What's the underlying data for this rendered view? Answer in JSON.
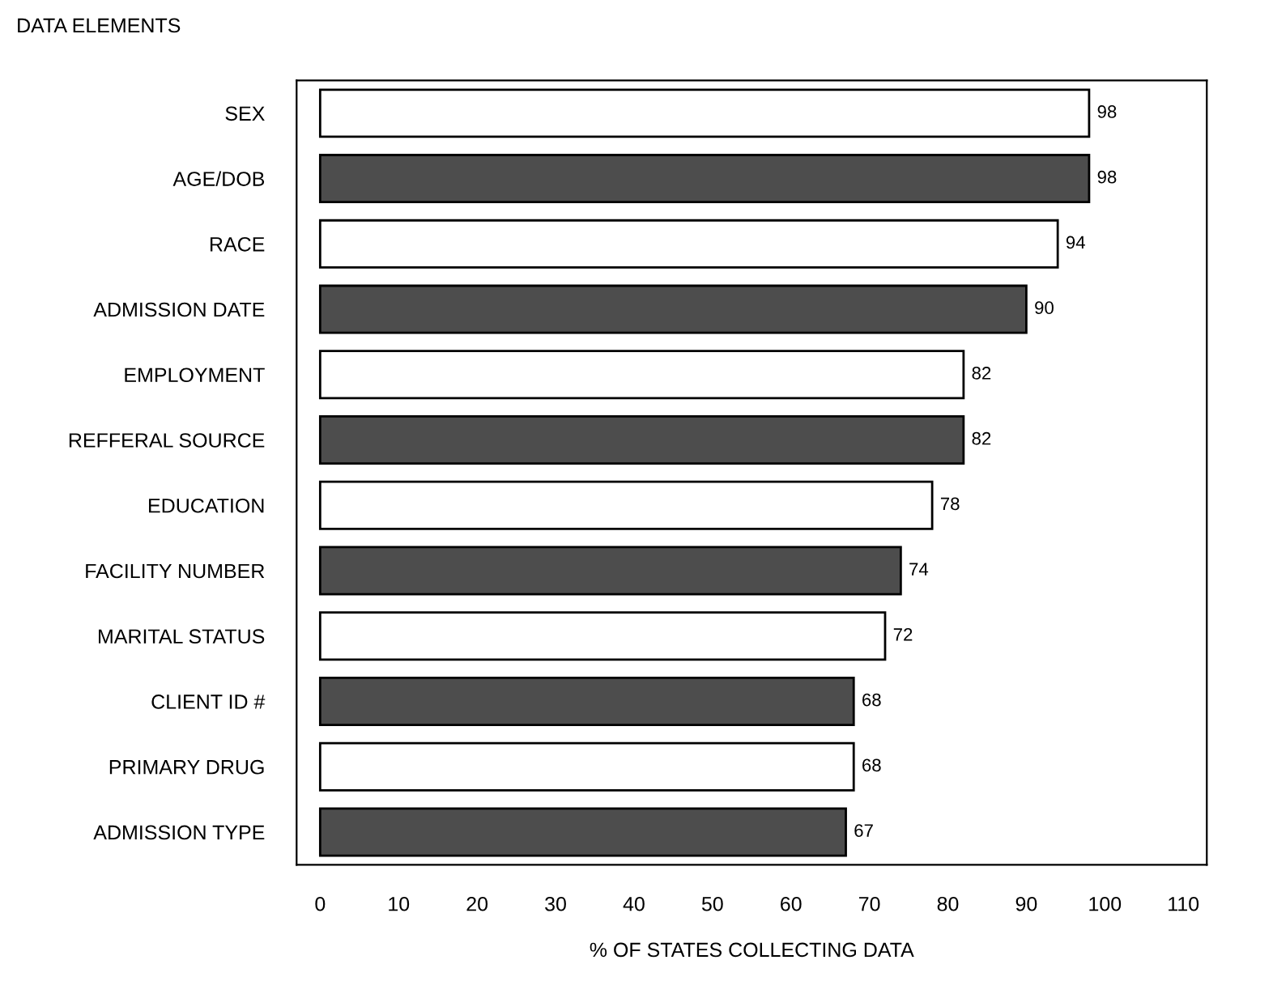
{
  "chart_data": {
    "type": "bar",
    "orientation": "horizontal",
    "ylabel": "DATA ELEMENTS",
    "xlabel": "% OF STATES COLLECTING DATA",
    "categories": [
      "SEX",
      "AGE/DOB",
      "RACE",
      "ADMISSION DATE",
      "EMPLOYMENT",
      "REFFERAL SOURCE",
      "EDUCATION",
      "FACILITY NUMBER",
      "MARITAL STATUS",
      "CLIENT ID #",
      "PRIMARY DRUG",
      "ADMISSION TYPE"
    ],
    "values": [
      98,
      98,
      94,
      90,
      82,
      82,
      78,
      74,
      72,
      68,
      68,
      67
    ],
    "colors": [
      "#ffffff",
      "#4d4d4d",
      "#ffffff",
      "#4d4d4d",
      "#ffffff",
      "#4d4d4d",
      "#ffffff",
      "#4d4d4d",
      "#ffffff",
      "#4d4d4d",
      "#ffffff",
      "#4d4d4d"
    ],
    "xlim": [
      -3,
      113
    ],
    "xticks": [
      0,
      10,
      20,
      30,
      40,
      50,
      60,
      70,
      80,
      90,
      100,
      110
    ],
    "data_labels": true,
    "grid": false,
    "legend": false
  }
}
